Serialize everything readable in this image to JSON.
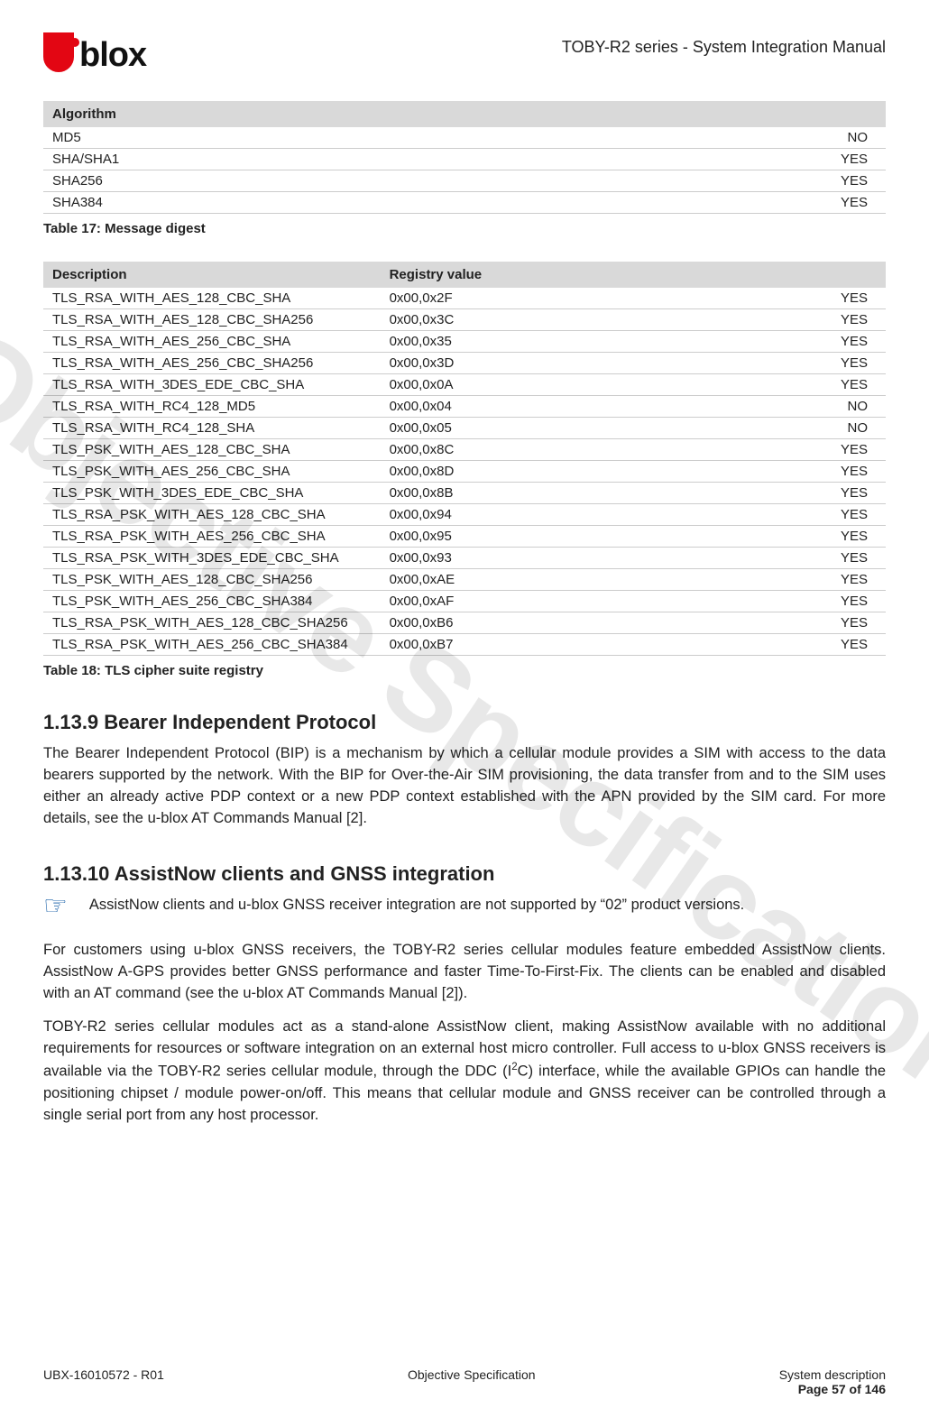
{
  "header": {
    "logo_text": "blox",
    "doc_title": "TOBY-R2 series - System Integration Manual"
  },
  "watermark": "Objective Specification",
  "table17": {
    "header": "Algorithm",
    "rows": [
      {
        "name": "MD5",
        "val": "NO"
      },
      {
        "name": "SHA/SHA1",
        "val": "YES"
      },
      {
        "name": "SHA256",
        "val": "YES"
      },
      {
        "name": "SHA384",
        "val": "YES"
      }
    ],
    "caption": "Table 17: Message digest"
  },
  "table18": {
    "h1": "Description",
    "h2": "Registry value",
    "rows": [
      {
        "d": "TLS_RSA_WITH_AES_128_CBC_SHA",
        "r": "0x00,0x2F",
        "v": "YES"
      },
      {
        "d": "TLS_RSA_WITH_AES_128_CBC_SHA256",
        "r": "0x00,0x3C",
        "v": "YES"
      },
      {
        "d": "TLS_RSA_WITH_AES_256_CBC_SHA",
        "r": "0x00,0x35",
        "v": "YES"
      },
      {
        "d": "TLS_RSA_WITH_AES_256_CBC_SHA256",
        "r": "0x00,0x3D",
        "v": "YES"
      },
      {
        "d": "TLS_RSA_WITH_3DES_EDE_CBC_SHA",
        "r": "0x00,0x0A",
        "v": "YES"
      },
      {
        "d": "TLS_RSA_WITH_RC4_128_MD5",
        "r": "0x00,0x04",
        "v": "NO"
      },
      {
        "d": "TLS_RSA_WITH_RC4_128_SHA",
        "r": "0x00,0x05",
        "v": "NO"
      },
      {
        "d": "TLS_PSK_WITH_AES_128_CBC_SHA",
        "r": "0x00,0x8C",
        "v": "YES"
      },
      {
        "d": "TLS_PSK_WITH_AES_256_CBC_SHA",
        "r": "0x00,0x8D",
        "v": "YES"
      },
      {
        "d": "TLS_PSK_WITH_3DES_EDE_CBC_SHA",
        "r": "0x00,0x8B",
        "v": "YES"
      },
      {
        "d": "TLS_RSA_PSK_WITH_AES_128_CBC_SHA",
        "r": "0x00,0x94",
        "v": "YES"
      },
      {
        "d": "TLS_RSA_PSK_WITH_AES_256_CBC_SHA",
        "r": "0x00,0x95",
        "v": "YES"
      },
      {
        "d": "TLS_RSA_PSK_WITH_3DES_EDE_CBC_SHA",
        "r": "0x00,0x93",
        "v": "YES"
      },
      {
        "d": "TLS_PSK_WITH_AES_128_CBC_SHA256",
        "r": "0x00,0xAE",
        "v": "YES"
      },
      {
        "d": "TLS_PSK_WITH_AES_256_CBC_SHA384",
        "r": "0x00,0xAF",
        "v": "YES"
      },
      {
        "d": "TLS_RSA_PSK_WITH_AES_128_CBC_SHA256",
        "r": "0x00,0xB6",
        "v": "YES"
      },
      {
        "d": "TLS_RSA_PSK_WITH_AES_256_CBC_SHA384",
        "r": "0x00,0xB7",
        "v": "YES"
      }
    ],
    "caption": "Table 18: TLS cipher suite registry"
  },
  "sections": {
    "s1_title": "1.13.9 Bearer Independent Protocol",
    "s1_p1": "The Bearer Independent Protocol (BIP) is a mechanism by which a cellular module provides a SIM with access to the data bearers supported by the network. With the BIP for Over-the-Air SIM provisioning, the data transfer from and to the SIM uses either an already active PDP context or a new PDP context established with the APN provided by the SIM card. For more details, see the u-blox AT Commands Manual [2].",
    "s2_title": "1.13.10  AssistNow clients and GNSS integration",
    "s2_note": "AssistNow clients and u-blox GNSS receiver integration are not supported by “02” product versions.",
    "s2_p1": "For customers using u-blox GNSS receivers, the TOBY-R2 series cellular modules feature embedded AssistNow clients. AssistNow A-GPS provides better GNSS performance and faster Time-To-First-Fix. The clients can be enabled and disabled with an AT command (see the u-blox AT Commands Manual [2]).",
    "s2_p2_a": "TOBY-R2 series cellular modules act as a stand-alone AssistNow client, making AssistNow available with no additional requirements for resources or software integration on an external host micro controller. Full access to u-blox GNSS receivers is available via the TOBY-R2 series cellular module, through the DDC (I",
    "s2_p2_b": "C) interface, while the available GPIOs can handle the positioning chipset / module power-on/off. This means that cellular module and GNSS receiver can be controlled through a single serial port from any host processor."
  },
  "footer": {
    "left": "UBX-16010572 - R01",
    "center": "Objective Specification",
    "right_top": "System description",
    "right_bottom": "Page 57 of 146"
  }
}
